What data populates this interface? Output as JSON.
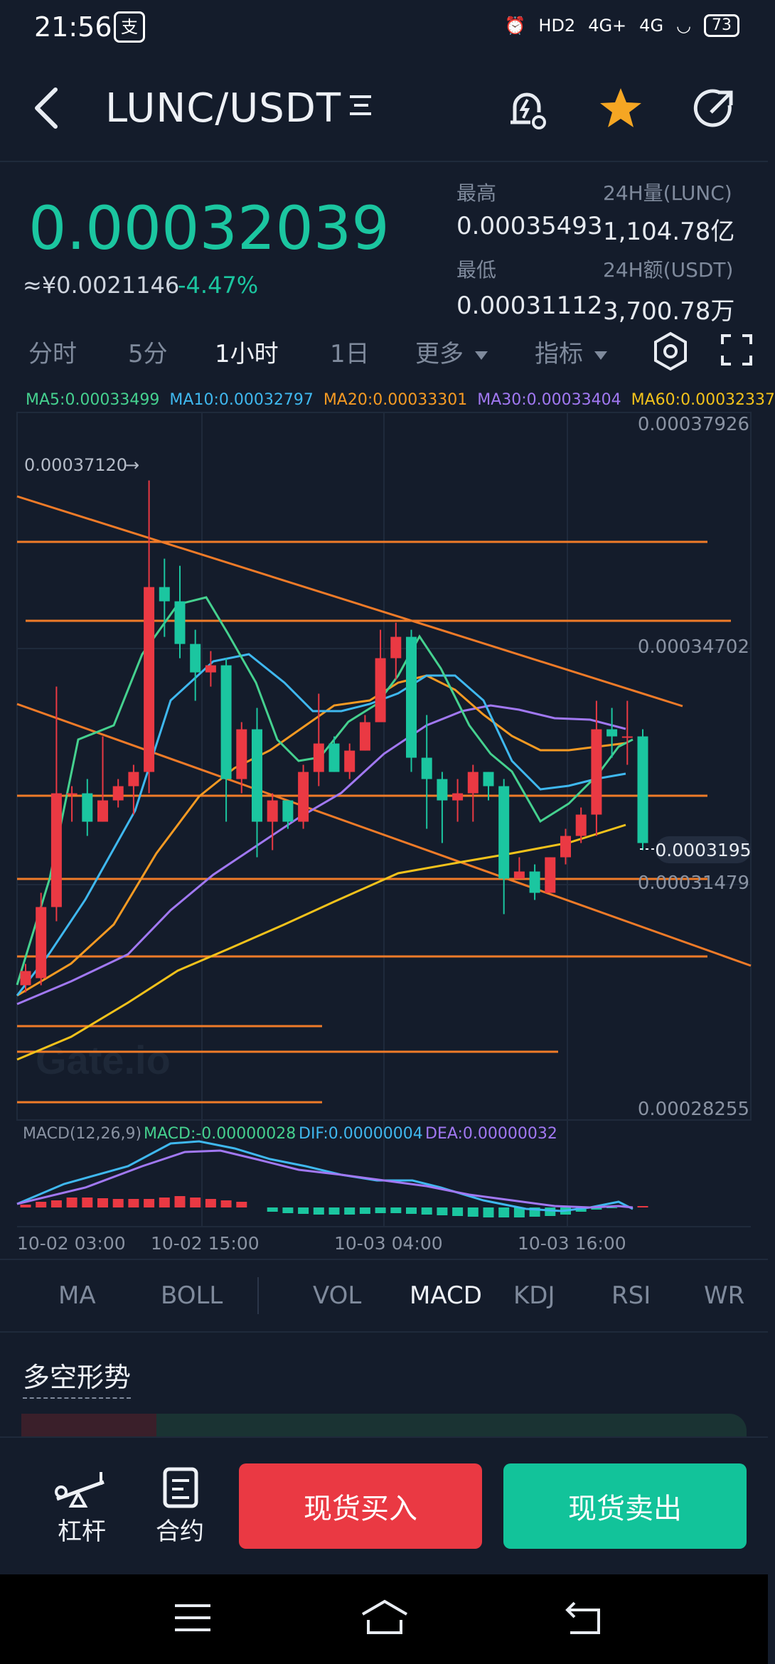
{
  "status_bar": {
    "time": "21:56",
    "app_badge": "支",
    "network_1": "4G+",
    "network_2": "4G",
    "hd": "HD2",
    "battery": "73"
  },
  "header": {
    "pair": "LUNC/USDT",
    "icons": [
      "back-icon",
      "pair-menu-icon",
      "price-alert-icon",
      "favorite-star-icon",
      "share-icon"
    ],
    "star_color": "#f5a623"
  },
  "price": {
    "last": "0.00032039",
    "cny": "≈¥0.0021146",
    "change": "-4.47%",
    "high_label": "最高",
    "high": "0.00035493",
    "low_label": "最低",
    "low": "0.00031112",
    "vol_label": "24H量(LUNC)",
    "vol": "1,104.78亿",
    "amt_label": "24H额(USDT)",
    "amt": "3,700.78万",
    "up_color": "#1bc6a0",
    "down_color": "#ea3943"
  },
  "tabs": {
    "t1": "分时",
    "t2": "5分",
    "t3": "1小时",
    "t4": "1日",
    "more": "更多",
    "indicators": "指标"
  },
  "ma_legend": [
    {
      "text": "MA5:0.00033499",
      "color": "#45d18f"
    },
    {
      "text": "MA10:0.00032797",
      "color": "#3fb8ef"
    },
    {
      "text": "MA20:0.00033301",
      "color": "#f59a23"
    },
    {
      "text": "MA30:0.00033404",
      "color": "#a178f2"
    },
    {
      "text": "MA60:0.00032337",
      "color": "#f2c21b"
    }
  ],
  "chart_data": {
    "type": "candlestick",
    "y_axis": [
      "0.00037926",
      "0.00034702",
      "0.00031479",
      "0.00028255"
    ],
    "ylim": [
      0.00028255,
      0.00037926
    ],
    "max_marker": "0.00037120",
    "current_marker": "0.0003195",
    "watermark": "Gate.io",
    "x_labels": [
      "10-02 03:00",
      "10-02 15:00",
      "10-03 04:00",
      "10-03 16:00"
    ],
    "candles": [
      [
        0.0003,
        0.000302,
        0.000299,
        0.000303
      ],
      [
        0.000301,
        0.000311,
        0.0003,
        0.000313
      ],
      [
        0.000311,
        0.000327,
        0.000309,
        0.000342
      ],
      [
        0.000327,
        0.000327,
        0.000323,
        0.000328
      ],
      [
        0.000327,
        0.000323,
        0.000321,
        0.000329
      ],
      [
        0.000323,
        0.000326,
        0.000323,
        0.000335
      ],
      [
        0.000326,
        0.000328,
        0.000325,
        0.000329
      ],
      [
        0.000328,
        0.00033,
        0.000324,
        0.000331
      ],
      [
        0.00033,
        0.000356,
        0.000327,
        0.000371
      ],
      [
        0.000356,
        0.000354,
        0.000349,
        0.00036
      ],
      [
        0.000354,
        0.000348,
        0.000346,
        0.000359
      ],
      [
        0.000348,
        0.000344,
        0.00034,
        0.00035
      ],
      [
        0.000344,
        0.000345,
        0.000342,
        0.000347
      ],
      [
        0.000345,
        0.000329,
        0.000323,
        0.000346
      ],
      [
        0.000329,
        0.000336,
        0.000327,
        0.000337
      ],
      [
        0.000336,
        0.000323,
        0.000318,
        0.000339
      ],
      [
        0.000323,
        0.000326,
        0.000319,
        0.000327
      ],
      [
        0.000326,
        0.000323,
        0.000322,
        0.000326
      ],
      [
        0.000323,
        0.00033,
        0.000322,
        0.000331
      ],
      [
        0.00033,
        0.000334,
        0.000328,
        0.000341
      ],
      [
        0.000334,
        0.00033,
        0.00033,
        0.000335
      ],
      [
        0.00033,
        0.000333,
        0.000329,
        0.000334
      ],
      [
        0.000333,
        0.000337,
        0.000333,
        0.000338
      ],
      [
        0.000337,
        0.000346,
        0.000337,
        0.00035
      ],
      [
        0.000346,
        0.000349,
        0.000343,
        0.000351
      ],
      [
        0.000349,
        0.000332,
        0.00033,
        0.00035
      ],
      [
        0.000332,
        0.000329,
        0.000322,
        0.000338
      ],
      [
        0.000329,
        0.000326,
        0.00032,
        0.00033
      ],
      [
        0.000326,
        0.000327,
        0.000323,
        0.000329
      ],
      [
        0.000327,
        0.00033,
        0.000323,
        0.000331
      ],
      [
        0.00033,
        0.000328,
        0.000326,
        0.00033
      ],
      [
        0.000328,
        0.000315,
        0.00031,
        0.000329
      ],
      [
        0.000315,
        0.000316,
        0.000315,
        0.000318
      ],
      [
        0.000316,
        0.000313,
        0.000312,
        0.000317
      ],
      [
        0.000313,
        0.000318,
        0.000313,
        0.000318
      ],
      [
        0.000318,
        0.000321,
        0.000317,
        0.000322
      ],
      [
        0.000321,
        0.000324,
        0.00032,
        0.000325
      ],
      [
        0.000324,
        0.000336,
        0.000321,
        0.00034
      ],
      [
        0.000336,
        0.000335,
        0.000332,
        0.000339
      ],
      [
        0.000335,
        0.000335,
        0.000331,
        0.00034
      ],
      [
        0.000335,
        0.00032,
        0.000319,
        0.000336
      ]
    ]
  },
  "macd": {
    "legend": "MACD(12,26,9)",
    "macd": "MACD:-0.00000028",
    "dif": "DIF:0.00000004",
    "dea": "DEA:0.00000032",
    "macd_color": "#45d18f",
    "dif_color": "#3fb8ef",
    "dea_color": "#a178f2"
  },
  "indicator_tabs": [
    "MA",
    "BOLL",
    "VOL",
    "MACD",
    "KDJ",
    "RSI",
    "WR"
  ],
  "section": {
    "title": "多空形势"
  },
  "bottom": {
    "leverage": "杠杆",
    "contract": "合约",
    "buy": "现货买入",
    "sell": "现货卖出"
  }
}
